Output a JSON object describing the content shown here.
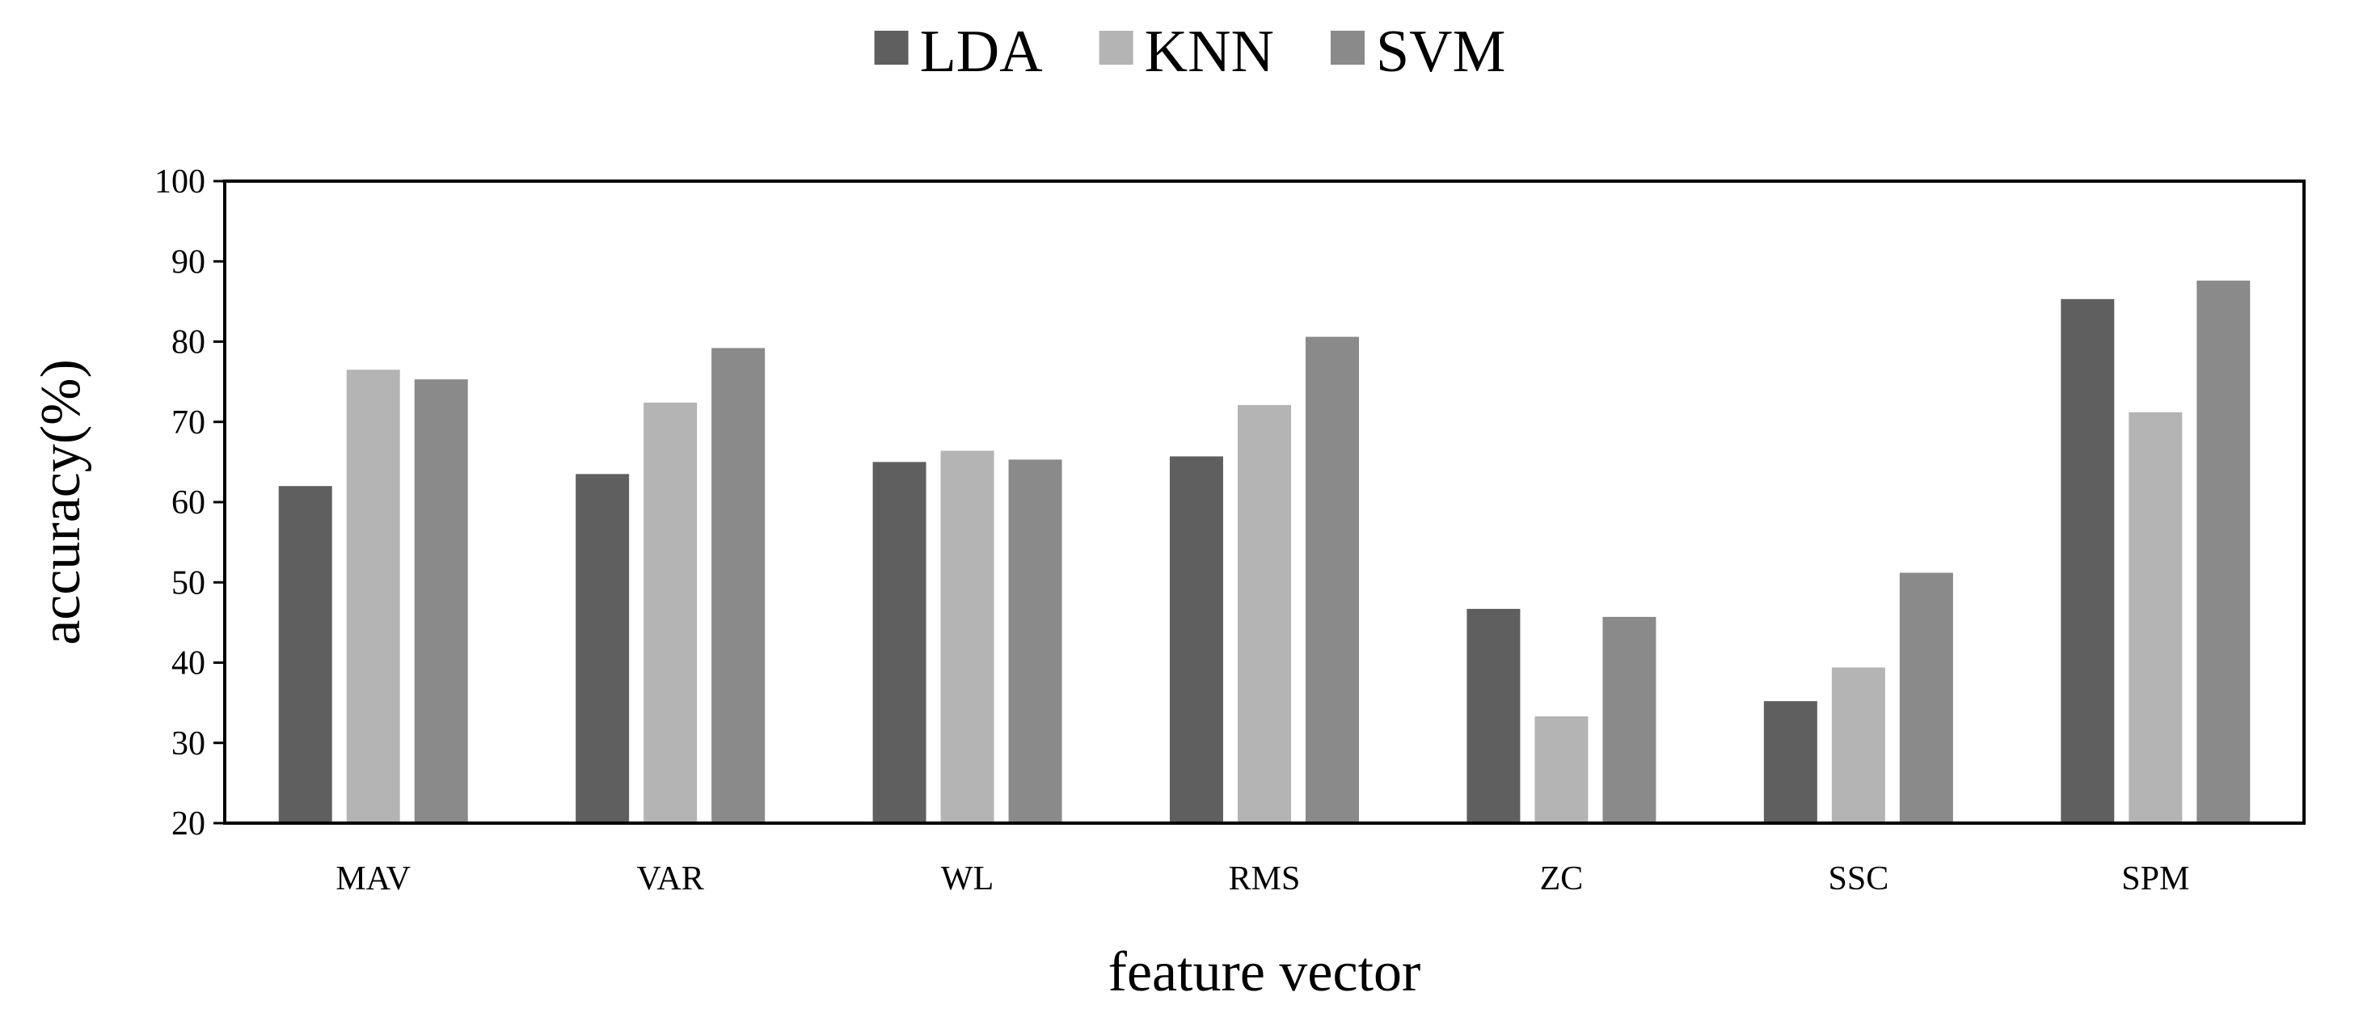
{
  "chart_data": {
    "type": "bar",
    "title": "",
    "xlabel": "feature vector",
    "ylabel": "accuracy(%)",
    "ylim": [
      20,
      100
    ],
    "yticks": [
      20,
      30,
      40,
      50,
      60,
      70,
      80,
      90,
      100
    ],
    "grid": false,
    "legend_position": "top-center",
    "categories": [
      "MAV",
      "VAR",
      "WL",
      "RMS",
      "ZC",
      "SSC",
      "SPM"
    ],
    "series": [
      {
        "name": "LDA",
        "color": "#5f5f5f",
        "values": [
          62.0,
          63.5,
          65.0,
          65.7,
          46.7,
          35.2,
          85.3
        ]
      },
      {
        "name": "KNN",
        "color": "#b4b4b4",
        "values": [
          76.5,
          72.4,
          66.4,
          72.1,
          33.3,
          39.4,
          71.2
        ]
      },
      {
        "name": "SVM",
        "color": "#8a8a8a",
        "values": [
          75.3,
          79.2,
          65.3,
          80.6,
          45.7,
          51.2,
          87.6
        ]
      }
    ]
  }
}
